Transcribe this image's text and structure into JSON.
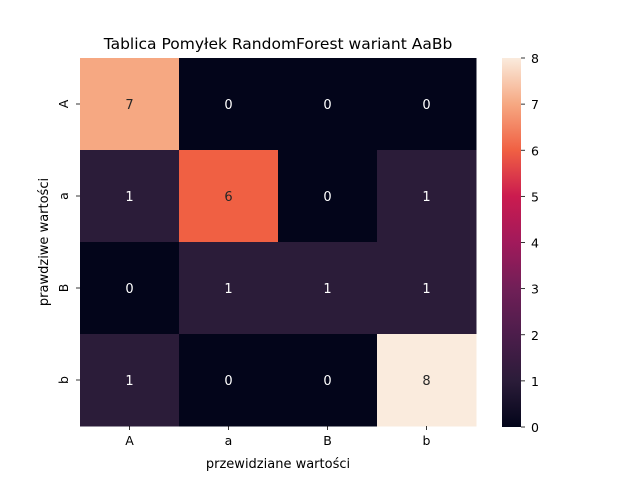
{
  "chart_data": {
    "type": "heatmap",
    "title": "Tablica Pomyłek RandomForest wariant AaBb",
    "xlabel": "przewidziane wartości",
    "ylabel": "prawdziwe wartości",
    "x_categories": [
      "A",
      "a",
      "B",
      "b"
    ],
    "y_categories": [
      "A",
      "a",
      "B",
      "b"
    ],
    "values": [
      [
        7,
        0,
        0,
        0
      ],
      [
        1,
        6,
        0,
        1
      ],
      [
        0,
        1,
        1,
        1
      ],
      [
        1,
        0,
        0,
        8
      ]
    ],
    "colorbar": {
      "range": [
        0,
        8
      ],
      "ticks": [
        "0",
        "1",
        "2",
        "3",
        "4",
        "5",
        "6",
        "7",
        "8"
      ],
      "colormap": "rocket"
    },
    "grid": false,
    "legend": "colorbar-right"
  }
}
